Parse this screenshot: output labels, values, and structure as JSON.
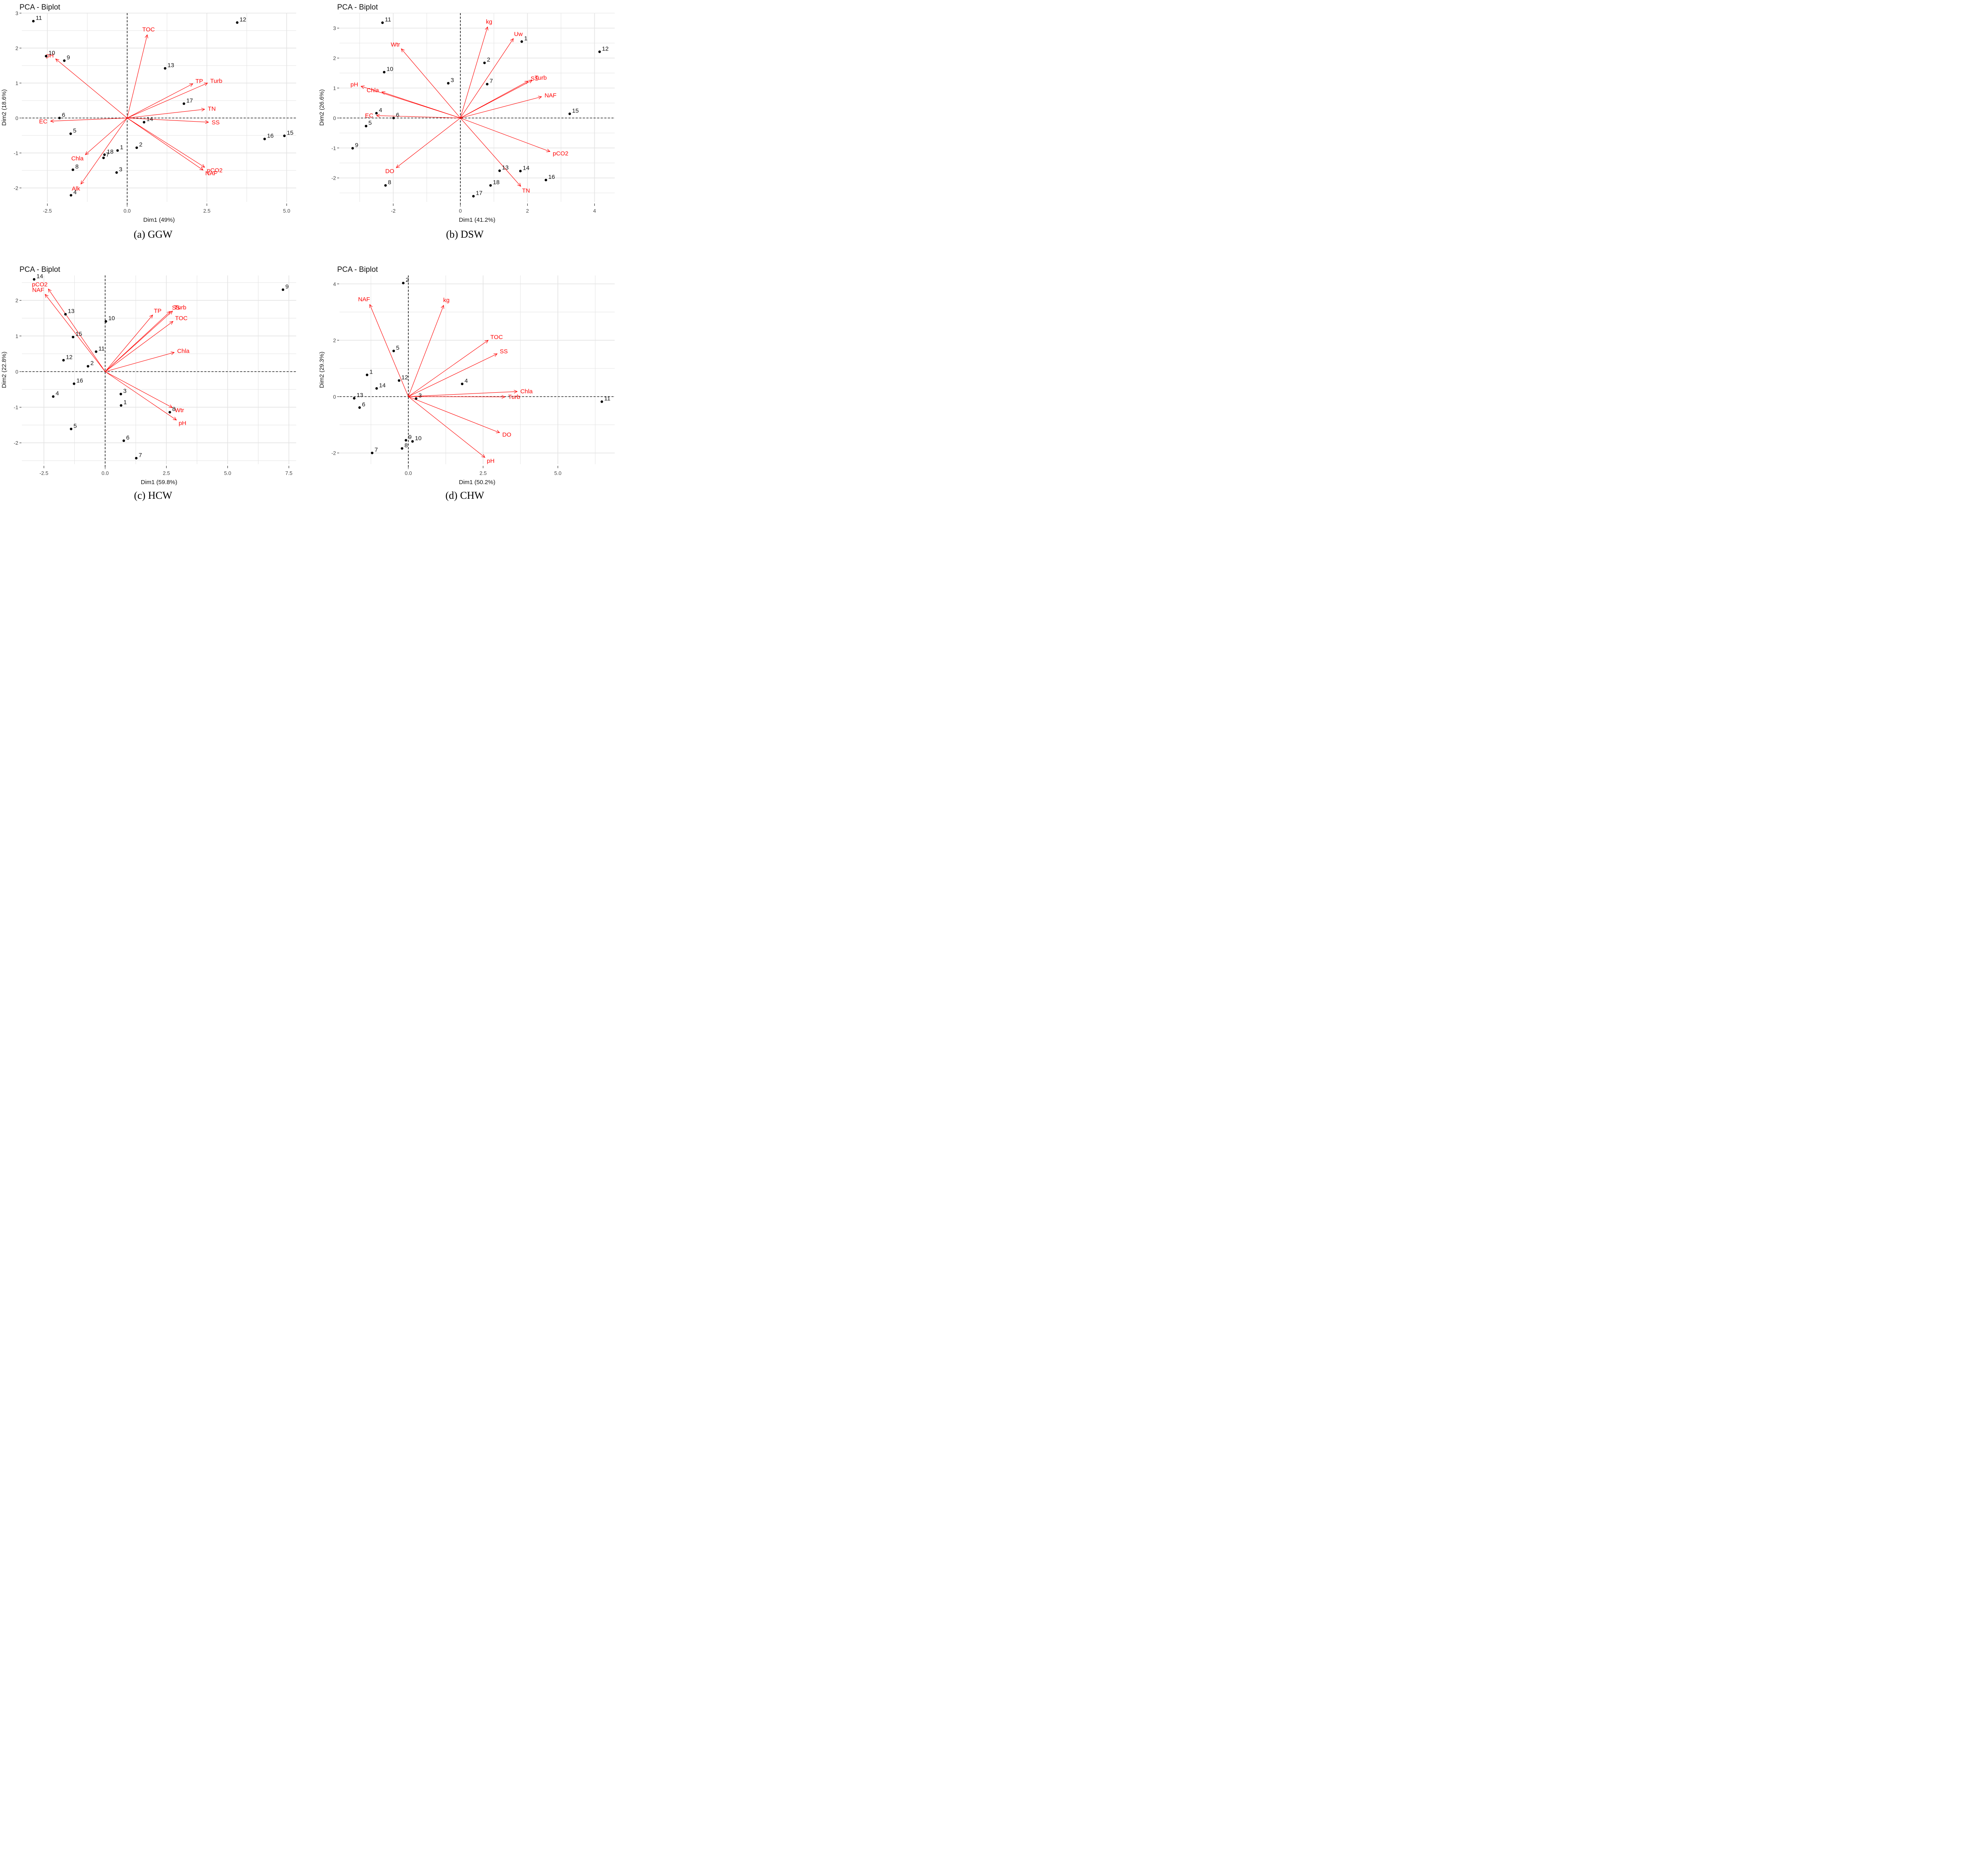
{
  "chart_data": [
    {
      "type": "scatter",
      "subtype": "pca-biplot",
      "title": "PCA - Biplot",
      "caption": "(a)  GGW",
      "xlabel": "Dim1 (49%)",
      "ylabel": "Dim2 (18.6%)",
      "xlim": [
        -3.3,
        5.3
      ],
      "ylim": [
        -2.4,
        3.0
      ],
      "xticks": [
        -2.5,
        0.0,
        2.5,
        5.0
      ],
      "xtick_labels": [
        "-2.5",
        "0.0",
        "2.5",
        "5.0"
      ],
      "yticks": [
        -2,
        -1,
        0,
        1,
        2,
        3
      ],
      "ytick_labels": [
        "-2",
        "-1",
        "0",
        "1",
        "2",
        "3"
      ],
      "grid": true,
      "point_color": "#000000",
      "arrow_color": "#ff0000",
      "points": [
        {
          "label": "1",
          "x": -0.3,
          "y": -0.93
        },
        {
          "label": "2",
          "x": 0.3,
          "y": -0.85
        },
        {
          "label": "3",
          "x": -0.33,
          "y": -1.56
        },
        {
          "label": "4",
          "x": -1.76,
          "y": -2.21
        },
        {
          "label": "5",
          "x": -1.77,
          "y": -0.45
        },
        {
          "label": "6",
          "x": -2.12,
          "y": 0.0
        },
        {
          "label": "7",
          "x": -0.74,
          "y": -1.14
        },
        {
          "label": "8",
          "x": -1.7,
          "y": -1.48
        },
        {
          "label": "9",
          "x": -1.97,
          "y": 1.64
        },
        {
          "label": "10",
          "x": -2.54,
          "y": 1.77
        },
        {
          "label": "11",
          "x": -2.94,
          "y": 2.77
        },
        {
          "label": "12",
          "x": 3.45,
          "y": 2.73
        },
        {
          "label": "13",
          "x": 1.19,
          "y": 1.42
        },
        {
          "label": "14",
          "x": 0.53,
          "y": -0.12
        },
        {
          "label": "15",
          "x": 4.93,
          "y": -0.51
        },
        {
          "label": "16",
          "x": 4.31,
          "y": -0.6
        },
        {
          "label": "17",
          "x": 1.78,
          "y": 0.41
        },
        {
          "label": "18",
          "x": -0.71,
          "y": -1.05
        }
      ],
      "variables": [
        {
          "label": "TOC",
          "x": 0.63,
          "y": 2.38
        },
        {
          "label": "pH",
          "x": -2.24,
          "y": 1.69
        },
        {
          "label": "TP",
          "x": 2.06,
          "y": 0.98
        },
        {
          "label": "Turb",
          "x": 2.52,
          "y": 1.0
        },
        {
          "label": "TN",
          "x": 2.43,
          "y": 0.25
        },
        {
          "label": "SS",
          "x": 2.55,
          "y": -0.12
        },
        {
          "label": "pCO2",
          "x": 2.43,
          "y": -1.41
        },
        {
          "label": "NAF",
          "x": 2.38,
          "y": -1.49
        },
        {
          "label": "EC",
          "x": -2.4,
          "y": -0.09
        },
        {
          "label": "Chla",
          "x": -1.31,
          "y": -1.05
        },
        {
          "label": "Alk",
          "x": -1.45,
          "y": -1.89
        }
      ]
    },
    {
      "type": "scatter",
      "subtype": "pca-biplot",
      "title": "PCA - Biplot",
      "caption": "(b)  DSW",
      "xlabel": "Dim1 (41.2%)",
      "ylabel": "Dim2 (26.6%)",
      "xlim": [
        -3.6,
        4.6
      ],
      "ylim": [
        -2.8,
        3.5
      ],
      "xticks": [
        -2,
        0,
        2,
        4
      ],
      "xtick_labels": [
        "-2",
        "0",
        "2",
        "4"
      ],
      "yticks": [
        -2,
        -1,
        0,
        1,
        2,
        3
      ],
      "ytick_labels": [
        "-2",
        "-1",
        "0",
        "1",
        "2",
        "3"
      ],
      "grid": true,
      "point_color": "#000000",
      "arrow_color": "#ff0000",
      "points": [
        {
          "label": "1",
          "x": 1.83,
          "y": 2.55
        },
        {
          "label": "2",
          "x": 0.72,
          "y": 1.84
        },
        {
          "label": "3",
          "x": -0.36,
          "y": 1.16
        },
        {
          "label": "4",
          "x": -2.5,
          "y": 0.16
        },
        {
          "label": "5",
          "x": -2.81,
          "y": -0.27
        },
        {
          "label": "6",
          "x": -1.99,
          "y": 0.0
        },
        {
          "label": "7",
          "x": 0.8,
          "y": 1.13
        },
        {
          "label": "8",
          "x": -2.23,
          "y": -2.25
        },
        {
          "label": "9",
          "x": -3.21,
          "y": -1.01
        },
        {
          "label": "10",
          "x": -2.27,
          "y": 1.53
        },
        {
          "label": "11",
          "x": -2.32,
          "y": 3.18
        },
        {
          "label": "12",
          "x": 4.15,
          "y": 2.21
        },
        {
          "label": "13",
          "x": 1.17,
          "y": -1.76
        },
        {
          "label": "14",
          "x": 1.79,
          "y": -1.77
        },
        {
          "label": "15",
          "x": 3.26,
          "y": 0.14
        },
        {
          "label": "16",
          "x": 2.55,
          "y": -2.07
        },
        {
          "label": "17",
          "x": 0.39,
          "y": -2.61
        },
        {
          "label": "18",
          "x": 0.9,
          "y": -2.25
        }
      ],
      "variables": [
        {
          "label": "kg",
          "x": 0.81,
          "y": 3.04
        },
        {
          "label": "Uw",
          "x": 1.58,
          "y": 2.65
        },
        {
          "label": "Wtr",
          "x": -1.76,
          "y": 2.31
        },
        {
          "label": "pH",
          "x": -2.96,
          "y": 1.06
        },
        {
          "label": "Chla",
          "x": -2.34,
          "y": 0.87
        },
        {
          "label": "EC",
          "x": -2.5,
          "y": 0.08
        },
        {
          "label": "Turb",
          "x": 2.14,
          "y": 1.26
        },
        {
          "label": "SS",
          "x": 2.02,
          "y": 1.23
        },
        {
          "label": "NAF",
          "x": 2.42,
          "y": 0.71
        },
        {
          "label": "pCO2",
          "x": 2.67,
          "y": -1.12
        },
        {
          "label": "TN",
          "x": 1.8,
          "y": -2.28
        },
        {
          "label": "DO",
          "x": -1.91,
          "y": -1.66
        }
      ]
    },
    {
      "type": "scatter",
      "subtype": "pca-biplot",
      "title": "PCA - Biplot",
      "caption": "(c)  HCW",
      "xlabel": "Dim1 (59.8%)",
      "ylabel": "Dim2 (22.8%)",
      "xlim": [
        -3.4,
        7.8
      ],
      "ylim": [
        -2.6,
        2.7
      ],
      "xticks": [
        -2.5,
        0.0,
        2.5,
        5.0,
        7.5
      ],
      "xtick_labels": [
        "-2.5",
        "0.0",
        "2.5",
        "5.0",
        "7.5"
      ],
      "yticks": [
        -2,
        -1,
        0,
        1,
        2
      ],
      "ytick_labels": [
        "-2",
        "-1",
        "0",
        "1",
        "2"
      ],
      "grid": true,
      "point_color": "#000000",
      "arrow_color": "#ff0000",
      "points": [
        {
          "label": "1",
          "x": 0.65,
          "y": -0.95
        },
        {
          "label": "2",
          "x": -0.7,
          "y": 0.15
        },
        {
          "label": "3",
          "x": 0.64,
          "y": -0.63
        },
        {
          "label": "4",
          "x": -2.12,
          "y": -0.7
        },
        {
          "label": "5",
          "x": -1.39,
          "y": -1.61
        },
        {
          "label": "6",
          "x": 0.76,
          "y": -1.94
        },
        {
          "label": "7",
          "x": 1.27,
          "y": -2.43
        },
        {
          "label": "8",
          "x": 2.64,
          "y": -1.14
        },
        {
          "label": "9",
          "x": 7.26,
          "y": 2.3
        },
        {
          "label": "10",
          "x": 0.03,
          "y": 1.41
        },
        {
          "label": "11",
          "x": -0.37,
          "y": 0.56
        },
        {
          "label": "12",
          "x": -1.7,
          "y": 0.32
        },
        {
          "label": "13",
          "x": -1.62,
          "y": 1.61
        },
        {
          "label": "14",
          "x": -2.9,
          "y": 2.59
        },
        {
          "label": "15",
          "x": -1.31,
          "y": 0.97
        },
        {
          "label": "16",
          "x": -1.27,
          "y": -0.34
        }
      ],
      "variables": [
        {
          "label": "pCO2",
          "x": -2.32,
          "y": 2.32
        },
        {
          "label": "NAF",
          "x": -2.45,
          "y": 2.17
        },
        {
          "label": "TP",
          "x": 1.94,
          "y": 1.59
        },
        {
          "label": "SS",
          "x": 2.66,
          "y": 1.69
        },
        {
          "label": "Turb",
          "x": 2.75,
          "y": 1.7
        },
        {
          "label": "TOC",
          "x": 2.77,
          "y": 1.41
        },
        {
          "label": "Chla",
          "x": 2.82,
          "y": 0.54
        },
        {
          "label": "Wtr",
          "x": 2.74,
          "y": -1.01
        },
        {
          "label": "pH",
          "x": 2.91,
          "y": -1.36
        }
      ]
    },
    {
      "type": "scatter",
      "subtype": "pca-biplot",
      "title": "PCA - Biplot",
      "caption": "(d)  CHW",
      "xlabel": "Dim1 (50.2%)",
      "ylabel": "Dim2 (29.3%)",
      "xlim": [
        -2.3,
        6.9
      ],
      "ylim": [
        -2.4,
        4.3
      ],
      "xticks": [
        0.0,
        2.5,
        5.0
      ],
      "xtick_labels": [
        "0.0",
        "2.5",
        "5.0"
      ],
      "yticks": [
        -2,
        0,
        2,
        4
      ],
      "ytick_labels": [
        "-2",
        "0",
        "2",
        "4"
      ],
      "grid": true,
      "point_color": "#000000",
      "arrow_color": "#ff0000",
      "points": [
        {
          "label": "1",
          "x": -1.38,
          "y": 0.77
        },
        {
          "label": "2",
          "x": -0.17,
          "y": 4.03
        },
        {
          "label": "3",
          "x": 0.26,
          "y": -0.07
        },
        {
          "label": "4",
          "x": 1.8,
          "y": 0.45
        },
        {
          "label": "5",
          "x": -0.49,
          "y": 1.62
        },
        {
          "label": "6",
          "x": -1.63,
          "y": -0.39
        },
        {
          "label": "7",
          "x": -1.21,
          "y": -2.0
        },
        {
          "label": "8",
          "x": -0.21,
          "y": -1.84
        },
        {
          "label": "9",
          "x": -0.08,
          "y": -1.55
        },
        {
          "label": "10",
          "x": 0.14,
          "y": -1.59
        },
        {
          "label": "11",
          "x": 6.47,
          "y": -0.18
        },
        {
          "label": "12",
          "x": -0.31,
          "y": 0.57
        },
        {
          "label": "13",
          "x": -1.81,
          "y": -0.06
        },
        {
          "label": "14",
          "x": -1.06,
          "y": 0.29
        }
      ],
      "variables": [
        {
          "label": "NAF",
          "x": -1.29,
          "y": 3.27
        },
        {
          "label": "kg",
          "x": 1.18,
          "y": 3.24
        },
        {
          "label": "TOC",
          "x": 2.67,
          "y": 2.0
        },
        {
          "label": "SS",
          "x": 2.97,
          "y": 1.52
        },
        {
          "label": "Chla",
          "x": 3.64,
          "y": 0.18
        },
        {
          "label": "Turb",
          "x": 3.23,
          "y": -0.01
        },
        {
          "label": "DO",
          "x": 3.05,
          "y": -1.28
        },
        {
          "label": "pH",
          "x": 2.56,
          "y": -2.16
        }
      ]
    }
  ]
}
